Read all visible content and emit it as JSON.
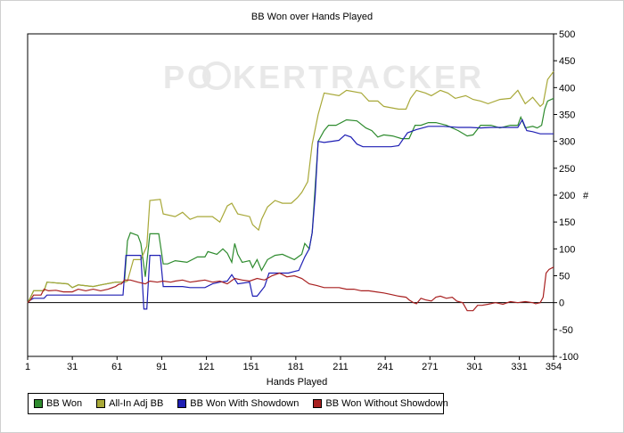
{
  "title": "BB Won over Hands Played",
  "watermark": {
    "left": "PO",
    "right": "KERTRACKER"
  },
  "legend": [
    {
      "label": "BB Won",
      "color": "#2e8b2e"
    },
    {
      "label": "All-In Adj BB",
      "color": "#a8a838"
    },
    {
      "label": "BB Won With Showdown",
      "color": "#1f1fb4"
    },
    {
      "label": "BB Won Without Showdown",
      "color": "#a82020"
    }
  ],
  "chart_data": {
    "type": "line",
    "title": "BB Won over Hands Played",
    "xlabel": "Hands Played",
    "ylabel": "#",
    "xlim": [
      1,
      354
    ],
    "ylim": [
      -100,
      500
    ],
    "xticks": [
      1,
      31,
      61,
      91,
      121,
      151,
      181,
      211,
      241,
      271,
      301,
      331,
      354
    ],
    "yticks": [
      -100,
      -50,
      0,
      50,
      100,
      150,
      200,
      250,
      300,
      350,
      400,
      450,
      500
    ],
    "grid": false,
    "legend_position": "bottom",
    "series": [
      {
        "name": "BB Won",
        "color": "#2e8b2e",
        "points": [
          [
            1,
            0
          ],
          [
            3,
            10
          ],
          [
            5,
            22
          ],
          [
            12,
            22
          ],
          [
            14,
            38
          ],
          [
            28,
            35
          ],
          [
            31,
            28
          ],
          [
            35,
            33
          ],
          [
            45,
            30
          ],
          [
            50,
            33
          ],
          [
            60,
            38
          ],
          [
            66,
            38
          ],
          [
            68,
            115
          ],
          [
            70,
            130
          ],
          [
            75,
            125
          ],
          [
            77,
            110
          ],
          [
            80,
            48
          ],
          [
            83,
            128
          ],
          [
            89,
            128
          ],
          [
            92,
            72
          ],
          [
            95,
            72
          ],
          [
            100,
            78
          ],
          [
            108,
            75
          ],
          [
            115,
            85
          ],
          [
            120,
            85
          ],
          [
            122,
            95
          ],
          [
            128,
            90
          ],
          [
            132,
            100
          ],
          [
            135,
            92
          ],
          [
            138,
            75
          ],
          [
            140,
            110
          ],
          [
            142,
            90
          ],
          [
            145,
            75
          ],
          [
            150,
            78
          ],
          [
            152,
            65
          ],
          [
            155,
            80
          ],
          [
            158,
            60
          ],
          [
            162,
            80
          ],
          [
            167,
            88
          ],
          [
            172,
            90
          ],
          [
            176,
            85
          ],
          [
            180,
            80
          ],
          [
            185,
            90
          ],
          [
            187,
            110
          ],
          [
            190,
            100
          ],
          [
            192,
            130
          ],
          [
            196,
            300
          ],
          [
            200,
            320
          ],
          [
            203,
            330
          ],
          [
            208,
            330
          ],
          [
            215,
            340
          ],
          [
            222,
            338
          ],
          [
            228,
            325
          ],
          [
            232,
            320
          ],
          [
            236,
            308
          ],
          [
            240,
            312
          ],
          [
            246,
            310
          ],
          [
            252,
            305
          ],
          [
            257,
            305
          ],
          [
            261,
            330
          ],
          [
            265,
            330
          ],
          [
            270,
            335
          ],
          [
            275,
            335
          ],
          [
            282,
            330
          ],
          [
            290,
            320
          ],
          [
            296,
            310
          ],
          [
            300,
            312
          ],
          [
            305,
            330
          ],
          [
            312,
            330
          ],
          [
            318,
            325
          ],
          [
            325,
            330
          ],
          [
            330,
            330
          ],
          [
            332,
            345
          ],
          [
            335,
            325
          ],
          [
            340,
            328
          ],
          [
            343,
            325
          ],
          [
            346,
            330
          ],
          [
            348,
            360
          ],
          [
            350,
            375
          ],
          [
            354,
            380
          ]
        ]
      },
      {
        "name": "All-In Adj BB",
        "color": "#a8a838",
        "points": [
          [
            1,
            0
          ],
          [
            3,
            10
          ],
          [
            5,
            22
          ],
          [
            12,
            22
          ],
          [
            14,
            38
          ],
          [
            28,
            35
          ],
          [
            31,
            28
          ],
          [
            35,
            33
          ],
          [
            45,
            30
          ],
          [
            50,
            33
          ],
          [
            60,
            38
          ],
          [
            66,
            38
          ],
          [
            68,
            40
          ],
          [
            72,
            80
          ],
          [
            77,
            80
          ],
          [
            81,
            105
          ],
          [
            83,
            190
          ],
          [
            90,
            192
          ],
          [
            92,
            165
          ],
          [
            100,
            160
          ],
          [
            105,
            168
          ],
          [
            110,
            155
          ],
          [
            115,
            160
          ],
          [
            125,
            160
          ],
          [
            130,
            150
          ],
          [
            135,
            180
          ],
          [
            138,
            185
          ],
          [
            142,
            165
          ],
          [
            150,
            160
          ],
          [
            152,
            145
          ],
          [
            156,
            135
          ],
          [
            158,
            155
          ],
          [
            162,
            178
          ],
          [
            167,
            190
          ],
          [
            172,
            185
          ],
          [
            178,
            185
          ],
          [
            182,
            195
          ],
          [
            185,
            205
          ],
          [
            189,
            225
          ],
          [
            192,
            295
          ],
          [
            196,
            350
          ],
          [
            200,
            390
          ],
          [
            210,
            385
          ],
          [
            215,
            395
          ],
          [
            225,
            390
          ],
          [
            230,
            375
          ],
          [
            236,
            375
          ],
          [
            240,
            365
          ],
          [
            250,
            360
          ],
          [
            255,
            360
          ],
          [
            258,
            380
          ],
          [
            262,
            395
          ],
          [
            268,
            390
          ],
          [
            272,
            385
          ],
          [
            278,
            395
          ],
          [
            283,
            390
          ],
          [
            288,
            380
          ],
          [
            295,
            385
          ],
          [
            300,
            378
          ],
          [
            305,
            375
          ],
          [
            310,
            370
          ],
          [
            318,
            378
          ],
          [
            325,
            380
          ],
          [
            330,
            395
          ],
          [
            335,
            370
          ],
          [
            340,
            382
          ],
          [
            342,
            375
          ],
          [
            345,
            365
          ],
          [
            347,
            370
          ],
          [
            350,
            415
          ],
          [
            354,
            430
          ]
        ]
      },
      {
        "name": "BB Won With Showdown",
        "color": "#1f1fb4",
        "points": [
          [
            1,
            0
          ],
          [
            3,
            5
          ],
          [
            5,
            8
          ],
          [
            12,
            8
          ],
          [
            14,
            14
          ],
          [
            40,
            14
          ],
          [
            55,
            14
          ],
          [
            60,
            14
          ],
          [
            65,
            14
          ],
          [
            67,
            88
          ],
          [
            75,
            88
          ],
          [
            77,
            88
          ],
          [
            79,
            -12
          ],
          [
            81,
            -12
          ],
          [
            83,
            88
          ],
          [
            90,
            88
          ],
          [
            92,
            30
          ],
          [
            100,
            30
          ],
          [
            105,
            30
          ],
          [
            110,
            28
          ],
          [
            120,
            28
          ],
          [
            125,
            35
          ],
          [
            130,
            38
          ],
          [
            135,
            40
          ],
          [
            138,
            52
          ],
          [
            142,
            35
          ],
          [
            150,
            38
          ],
          [
            152,
            12
          ],
          [
            155,
            12
          ],
          [
            160,
            30
          ],
          [
            163,
            55
          ],
          [
            170,
            55
          ],
          [
            176,
            55
          ],
          [
            180,
            58
          ],
          [
            183,
            60
          ],
          [
            187,
            85
          ],
          [
            190,
            100
          ],
          [
            192,
            130
          ],
          [
            194,
            200
          ],
          [
            196,
            300
          ],
          [
            200,
            298
          ],
          [
            210,
            302
          ],
          [
            214,
            312
          ],
          [
            218,
            308
          ],
          [
            222,
            295
          ],
          [
            226,
            290
          ],
          [
            232,
            290
          ],
          [
            240,
            290
          ],
          [
            245,
            290
          ],
          [
            250,
            292
          ],
          [
            256,
            316
          ],
          [
            262,
            322
          ],
          [
            270,
            328
          ],
          [
            280,
            328
          ],
          [
            290,
            326
          ],
          [
            298,
            326
          ],
          [
            305,
            325
          ],
          [
            312,
            326
          ],
          [
            320,
            326
          ],
          [
            330,
            326
          ],
          [
            333,
            340
          ],
          [
            336,
            320
          ],
          [
            340,
            318
          ],
          [
            345,
            314
          ],
          [
            350,
            314
          ],
          [
            354,
            314
          ]
        ]
      },
      {
        "name": "BB Won Without Showdown",
        "color": "#a82020",
        "points": [
          [
            1,
            0
          ],
          [
            3,
            5
          ],
          [
            5,
            14
          ],
          [
            10,
            14
          ],
          [
            12,
            25
          ],
          [
            15,
            22
          ],
          [
            20,
            23
          ],
          [
            25,
            20
          ],
          [
            31,
            20
          ],
          [
            35,
            25
          ],
          [
            40,
            22
          ],
          [
            45,
            25
          ],
          [
            50,
            22
          ],
          [
            55,
            25
          ],
          [
            60,
            30
          ],
          [
            62,
            34
          ],
          [
            64,
            35
          ],
          [
            66,
            42
          ],
          [
            70,
            42
          ],
          [
            75,
            38
          ],
          [
            80,
            35
          ],
          [
            83,
            40
          ],
          [
            88,
            38
          ],
          [
            92,
            40
          ],
          [
            97,
            38
          ],
          [
            100,
            40
          ],
          [
            105,
            42
          ],
          [
            110,
            38
          ],
          [
            115,
            40
          ],
          [
            120,
            42
          ],
          [
            125,
            38
          ],
          [
            130,
            40
          ],
          [
            135,
            35
          ],
          [
            140,
            45
          ],
          [
            145,
            42
          ],
          [
            150,
            40
          ],
          [
            155,
            45
          ],
          [
            160,
            42
          ],
          [
            165,
            50
          ],
          [
            170,
            55
          ],
          [
            175,
            48
          ],
          [
            180,
            50
          ],
          [
            185,
            45
          ],
          [
            190,
            35
          ],
          [
            195,
            32
          ],
          [
            200,
            28
          ],
          [
            210,
            28
          ],
          [
            215,
            25
          ],
          [
            220,
            25
          ],
          [
            225,
            22
          ],
          [
            230,
            22
          ],
          [
            235,
            20
          ],
          [
            240,
            18
          ],
          [
            245,
            15
          ],
          [
            250,
            12
          ],
          [
            255,
            10
          ],
          [
            257,
            5
          ],
          [
            260,
            0
          ],
          [
            262,
            -2
          ],
          [
            265,
            8
          ],
          [
            268,
            5
          ],
          [
            272,
            3
          ],
          [
            275,
            10
          ],
          [
            278,
            12
          ],
          [
            282,
            8
          ],
          [
            286,
            10
          ],
          [
            289,
            3
          ],
          [
            293,
            0
          ],
          [
            296,
            -15
          ],
          [
            300,
            -15
          ],
          [
            303,
            -5
          ],
          [
            306,
            -5
          ],
          [
            310,
            -3
          ],
          [
            315,
            0
          ],
          [
            320,
            -3
          ],
          [
            325,
            2
          ],
          [
            330,
            0
          ],
          [
            335,
            2
          ],
          [
            340,
            0
          ],
          [
            342,
            -2
          ],
          [
            345,
            0
          ],
          [
            347,
            10
          ],
          [
            349,
            55
          ],
          [
            351,
            62
          ],
          [
            354,
            66
          ]
        ]
      }
    ]
  }
}
